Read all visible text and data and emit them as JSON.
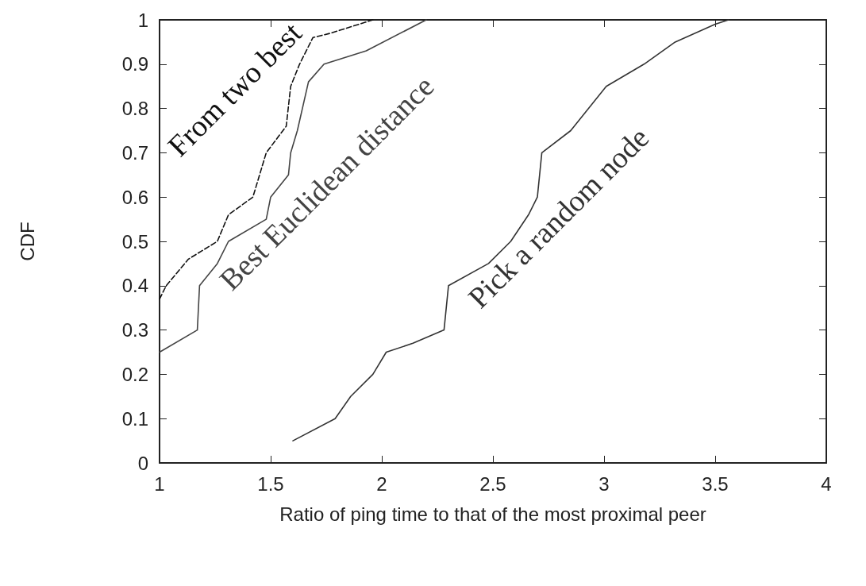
{
  "chart_data": {
    "type": "line",
    "xlabel": "Ratio of ping time to that of the most proximal peer",
    "ylabel": "CDF",
    "xlim": [
      1,
      4
    ],
    "xticks": [
      1,
      1.5,
      2,
      2.5,
      3,
      3.5,
      4
    ],
    "ylim": [
      0,
      1
    ],
    "yticks": [
      0,
      0.1,
      0.2,
      0.3,
      0.4,
      0.5,
      0.6,
      0.7,
      0.8,
      0.9,
      1
    ],
    "grid": false,
    "marker": "none",
    "series": [
      {
        "name": "From two best",
        "color": "#111111",
        "line_style": "dashed",
        "x": [
          1,
          1.03,
          1.13,
          1.26,
          1.31,
          1.42,
          1.48,
          1.57,
          1.59,
          1.63,
          1.69,
          1.77,
          1.96
        ],
        "values": [
          0.37,
          0.4,
          0.46,
          0.5,
          0.56,
          0.6,
          0.7,
          0.76,
          0.85,
          0.9,
          0.96,
          0.97,
          1
        ]
      },
      {
        "name": "Best Euclidean distance",
        "color": "#444444",
        "line_style": "solid",
        "x": [
          1,
          1.17,
          1.18,
          1.26,
          1.31,
          1.48,
          1.5,
          1.58,
          1.59,
          1.62,
          1.67,
          1.74,
          1.93,
          2.2
        ],
        "values": [
          0.25,
          0.3,
          0.4,
          0.45,
          0.5,
          0.55,
          0.6,
          0.65,
          0.7,
          0.75,
          0.86,
          0.9,
          0.93,
          1
        ]
      },
      {
        "name": "Pick a random node",
        "color": "#333333",
        "line_style": "solid",
        "x": [
          1.6,
          1.79,
          1.86,
          1.96,
          2.02,
          2.14,
          2.28,
          2.3,
          2.48,
          2.58,
          2.66,
          2.7,
          2.72,
          2.85,
          3.01,
          3.18,
          3.32,
          3.5,
          3.56
        ],
        "values": [
          0.05,
          0.1,
          0.15,
          0.2,
          0.25,
          0.27,
          0.3,
          0.4,
          0.45,
          0.5,
          0.56,
          0.6,
          0.7,
          0.75,
          0.85,
          0.9,
          0.95,
          0.99,
          1
        ]
      }
    ]
  }
}
